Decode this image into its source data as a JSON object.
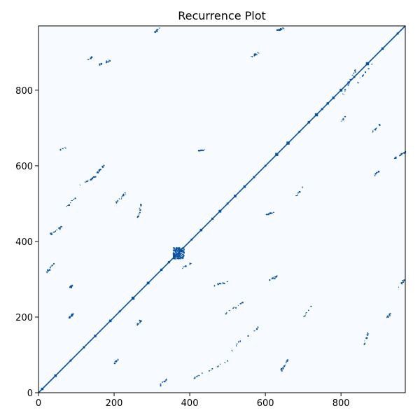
{
  "chart_data": {
    "type": "heatmap",
    "title": "Recurrence Plot",
    "xlabel": "",
    "ylabel": "",
    "xlim": [
      0,
      970
    ],
    "ylim": [
      0,
      970
    ],
    "x_ticks": [
      0,
      200,
      400,
      600,
      800
    ],
    "y_ticks": [
      0,
      200,
      400,
      600,
      800
    ],
    "x_tick_labels": [
      "0",
      "200",
      "400",
      "600",
      "800"
    ],
    "y_tick_labels": [
      "0",
      "200",
      "400",
      "600",
      "800"
    ],
    "colormap": "Blues",
    "background_color": "#f7fbff",
    "recurrence_color": "#08519c",
    "dense_block": {
      "x_range": [
        355,
        385
      ],
      "y_range": [
        355,
        385
      ]
    },
    "diagonal_dots": [
      10,
      45,
      85,
      120,
      150,
      190,
      215,
      250,
      290,
      325,
      345,
      360,
      375,
      405,
      430,
      460,
      480,
      500,
      520,
      545,
      570,
      600,
      630,
      660,
      690,
      715,
      735,
      750,
      765,
      780,
      800,
      820,
      835,
      870,
      910,
      950
    ],
    "off_diagonal_segments": [
      {
        "x": [
          50,
          70
        ],
        "y": [
          640,
          650
        ]
      },
      {
        "x": [
          70,
          100
        ],
        "y": [
          490,
          520
        ]
      },
      {
        "x": [
          110,
          150
        ],
        "y": [
          550,
          575
        ]
      },
      {
        "x": [
          150,
          175
        ],
        "y": [
          580,
          605
        ]
      },
      {
        "x": [
          20,
          40
        ],
        "y": [
          320,
          345
        ]
      },
      {
        "x": [
          30,
          60
        ],
        "y": [
          420,
          440
        ]
      },
      {
        "x": [
          200,
          230
        ],
        "y": [
          500,
          530
        ]
      },
      {
        "x": [
          260,
          270
        ],
        "y": [
          460,
          500
        ]
      },
      {
        "x": [
          260,
          270
        ],
        "y": [
          180,
          195
        ]
      },
      {
        "x": [
          320,
          340
        ],
        "y": [
          20,
          40
        ]
      },
      {
        "x": [
          380,
          400
        ],
        "y": [
          330,
          345
        ]
      },
      {
        "x": [
          410,
          440
        ],
        "y": [
          40,
          60
        ]
      },
      {
        "x": [
          450,
          500
        ],
        "y": [
          60,
          85
        ]
      },
      {
        "x": [
          460,
          500
        ],
        "y": [
          285,
          295
        ]
      },
      {
        "x": [
          490,
          540
        ],
        "y": [
          210,
          240
        ]
      },
      {
        "x": [
          510,
          540
        ],
        "y": [
          110,
          150
        ]
      },
      {
        "x": [
          550,
          580
        ],
        "y": [
          150,
          175
        ]
      },
      {
        "x": [
          600,
          620
        ],
        "y": [
          470,
          480
        ]
      },
      {
        "x": [
          610,
          630
        ],
        "y": [
          300,
          310
        ]
      },
      {
        "x": [
          640,
          660
        ],
        "y": [
          60,
          90
        ]
      },
      {
        "x": [
          700,
          720
        ],
        "y": [
          200,
          230
        ]
      },
      {
        "x": [
          680,
          700
        ],
        "y": [
          520,
          550
        ]
      },
      {
        "x": [
          800,
          840
        ],
        "y": [
          780,
          860
        ]
      },
      {
        "x": [
          840,
          880
        ],
        "y": [
          820,
          870
        ]
      },
      {
        "x": [
          880,
          900
        ],
        "y": [
          570,
          590
        ]
      },
      {
        "x": [
          880,
          900
        ],
        "y": [
          690,
          710
        ]
      },
      {
        "x": [
          940,
          970
        ],
        "y": [
          620,
          640
        ]
      },
      {
        "x": [
          950,
          970
        ],
        "y": [
          280,
          305
        ]
      },
      {
        "x": [
          300,
          320
        ],
        "y": [
          950,
          965
        ]
      },
      {
        "x": [
          630,
          650
        ],
        "y": [
          960,
          965
        ]
      },
      {
        "x": [
          560,
          580
        ],
        "y": [
          890,
          900
        ]
      },
      {
        "x": [
          160,
          190
        ],
        "y": [
          870,
          880
        ]
      },
      {
        "x": [
          130,
          140
        ],
        "y": [
          880,
          890
        ]
      },
      {
        "x": [
          800,
          810
        ],
        "y": [
          720,
          730
        ]
      },
      {
        "x": [
          860,
          870
        ],
        "y": [
          130,
          160
        ]
      },
      {
        "x": [
          920,
          930
        ],
        "y": [
          200,
          210
        ]
      },
      {
        "x": [
          200,
          210
        ],
        "y": [
          80,
          90
        ]
      },
      {
        "x": [
          80,
          90
        ],
        "y": [
          280,
          285
        ]
      },
      {
        "x": [
          80,
          90
        ],
        "y": [
          200,
          210
        ]
      },
      {
        "x": [
          420,
          440
        ],
        "y": [
          640,
          645
        ]
      }
    ]
  }
}
